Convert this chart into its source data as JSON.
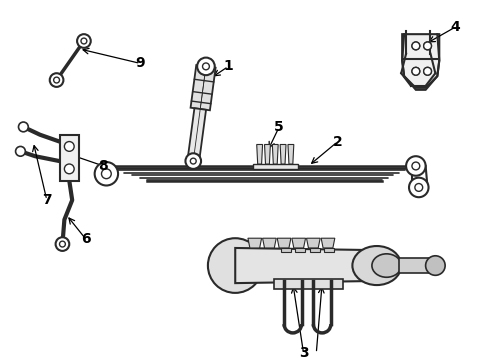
{
  "bg_color": "#ffffff",
  "line_color": "#2a2a2a",
  "fig_width": 4.9,
  "fig_height": 3.6,
  "dpi": 100,
  "xlim": [
    0,
    490
  ],
  "ylim": [
    0,
    360
  ]
}
